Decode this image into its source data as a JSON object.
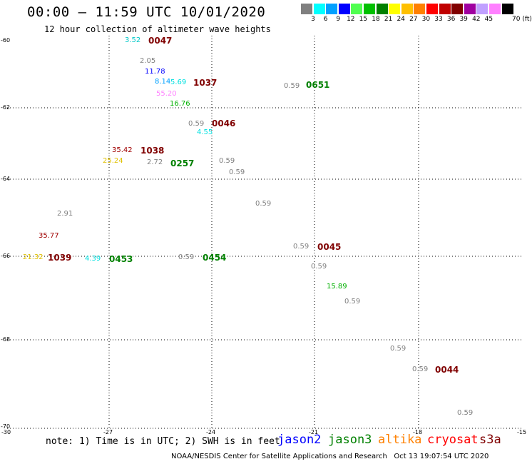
{
  "header": {
    "title": "00:00 – 11:59 UTC 10/01/2020",
    "subtitle": "12 hour collection of altimeter wave heights"
  },
  "colorbar": {
    "unit": "70 (ft)",
    "swatches": [
      {
        "color": "#808080",
        "label": "3"
      },
      {
        "color": "#00ffff",
        "label": "6"
      },
      {
        "color": "#00a0ff",
        "label": "9"
      },
      {
        "color": "#0000ff",
        "label": "12"
      },
      {
        "color": "#50ff50",
        "label": "15"
      },
      {
        "color": "#00c000",
        "label": "18"
      },
      {
        "color": "#008000",
        "label": "21"
      },
      {
        "color": "#ffff00",
        "label": "24"
      },
      {
        "color": "#ffc000",
        "label": "27"
      },
      {
        "color": "#ff8000",
        "label": "30"
      },
      {
        "color": "#ff0000",
        "label": "33"
      },
      {
        "color": "#c00000",
        "label": "36"
      },
      {
        "color": "#800000",
        "label": "39"
      },
      {
        "color": "#a000a0",
        "label": "42"
      },
      {
        "color": "#c0a0ff",
        "label": "45"
      },
      {
        "color": "#ff80ff",
        "label": ""
      },
      {
        "color": "#000000",
        "label": ""
      }
    ]
  },
  "axes": {
    "lat_ticks": [
      "-60",
      "-62",
      "-64",
      "-66",
      "-68",
      "-70"
    ],
    "lon_ticks": [
      "-30",
      "-27",
      "-24",
      "-21",
      "-18",
      "-15"
    ]
  },
  "observations": [
    {
      "text": "3.52",
      "color": "#00c8c8"
    },
    {
      "text": "2.05",
      "color": "#808080"
    },
    {
      "text": "11.78",
      "color": "#0000ff"
    },
    {
      "text": "8.14",
      "color": "#00a0ff"
    },
    {
      "text": "5.69",
      "color": "#00e0e0"
    },
    {
      "text": "55.20",
      "color": "#ff80ff"
    },
    {
      "text": "16.76",
      "color": "#00b000"
    },
    {
      "text": "0.59",
      "color": "#808080"
    },
    {
      "text": "4.55",
      "color": "#00e0e0"
    },
    {
      "text": "35.42",
      "color": "#a00000"
    },
    {
      "text": "25.24",
      "color": "#e0c000"
    },
    {
      "text": "2.72",
      "color": "#808080"
    },
    {
      "text": "0.59",
      "color": "#808080"
    },
    {
      "text": "0.59",
      "color": "#808080"
    },
    {
      "text": "0.59",
      "color": "#808080"
    },
    {
      "text": "2.91",
      "color": "#808080"
    },
    {
      "text": "35.77",
      "color": "#a00000"
    },
    {
      "text": "21.32",
      "color": "#e0c000"
    },
    {
      "text": "4.39",
      "color": "#00e0e0"
    },
    {
      "text": "0.59",
      "color": "#808080"
    },
    {
      "text": "0.59",
      "color": "#808080"
    },
    {
      "text": "0.59",
      "color": "#808080"
    },
    {
      "text": "0.59",
      "color": "#808080"
    },
    {
      "text": "15.89",
      "color": "#00b000"
    },
    {
      "text": "0.59",
      "color": "#808080"
    },
    {
      "text": "0.59",
      "color": "#808080"
    },
    {
      "text": "0.59",
      "color": "#808080"
    },
    {
      "text": "0.59",
      "color": "#808080"
    }
  ],
  "time_labels": [
    {
      "text": "0047",
      "color": "#800000"
    },
    {
      "text": "1037",
      "color": "#800000"
    },
    {
      "text": "0651",
      "color": "#008000"
    },
    {
      "text": "0046",
      "color": "#800000"
    },
    {
      "text": "1038",
      "color": "#800000"
    },
    {
      "text": "0257",
      "color": "#008000"
    },
    {
      "text": "1039",
      "color": "#800000"
    },
    {
      "text": "0453",
      "color": "#008000"
    },
    {
      "text": "0454",
      "color": "#008000"
    },
    {
      "text": "0045",
      "color": "#800000"
    },
    {
      "text": "0044",
      "color": "#800000"
    }
  ],
  "note": "note: 1) Time is in UTC; 2) SWH is in feet",
  "satellites": [
    {
      "name": "jason2",
      "color": "#0000ff"
    },
    {
      "name": "jason3",
      "color": "#008000"
    },
    {
      "name": "altika",
      "color": "#ff8000"
    },
    {
      "name": "cryosat",
      "color": "#ff0000"
    },
    {
      "name": "s3a",
      "color": "#800000"
    }
  ],
  "footer": "NOAA/NESDIS Center for Satellite Applications and Research   Oct 13 19:07:54 UTC 2020"
}
